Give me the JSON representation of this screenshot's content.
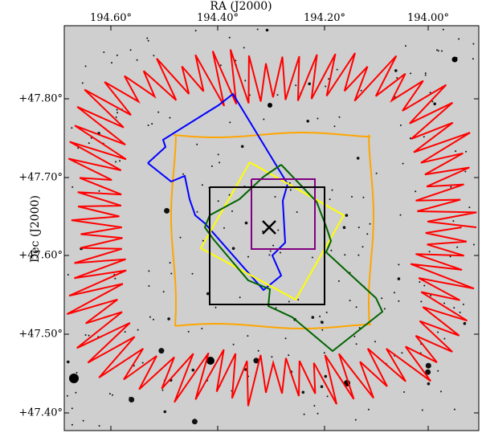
{
  "axes": {
    "x_title": "RA (J2000)",
    "y_title": "Dec (J2000)",
    "ra_ticks": [
      {
        "value": 194.6,
        "label": "194.60°"
      },
      {
        "value": 194.4,
        "label": "194.40°"
      },
      {
        "value": 194.2,
        "label": "194.20°"
      },
      {
        "value": 194.0,
        "label": "194.00°"
      }
    ],
    "dec_ticks": [
      {
        "value": 47.8,
        "label": "+47.80°"
      },
      {
        "value": 47.7,
        "label": "+47.70°"
      },
      {
        "value": 47.6,
        "label": "+47.60°"
      },
      {
        "value": 47.5,
        "label": "+47.50°"
      },
      {
        "value": 47.4,
        "label": "+47.40°"
      }
    ],
    "ra_range": [
      194.71,
      193.89
    ],
    "dec_range": [
      47.38,
      47.885
    ]
  },
  "map": {
    "background_color": "#cfcfcf",
    "target_marker": {
      "symbol": "x",
      "ra": 194.282,
      "dec": 47.632,
      "color": "#000000"
    },
    "footprints": [
      {
        "name": "red",
        "color": "#ff0000",
        "shape": "jagged-ring"
      },
      {
        "name": "orange",
        "color": "#ffa500",
        "shape": "wavy-square"
      },
      {
        "name": "blue",
        "color": "#0000ff",
        "shape": "rotated-polygon"
      },
      {
        "name": "yellow",
        "color": "#ffff00",
        "shape": "rotated-square"
      },
      {
        "name": "green",
        "color": "#006400",
        "shape": "rotated-polygon"
      },
      {
        "name": "purple",
        "color": "#800080",
        "shape": "square"
      },
      {
        "name": "black",
        "color": "#000000",
        "shape": "square"
      }
    ]
  }
}
